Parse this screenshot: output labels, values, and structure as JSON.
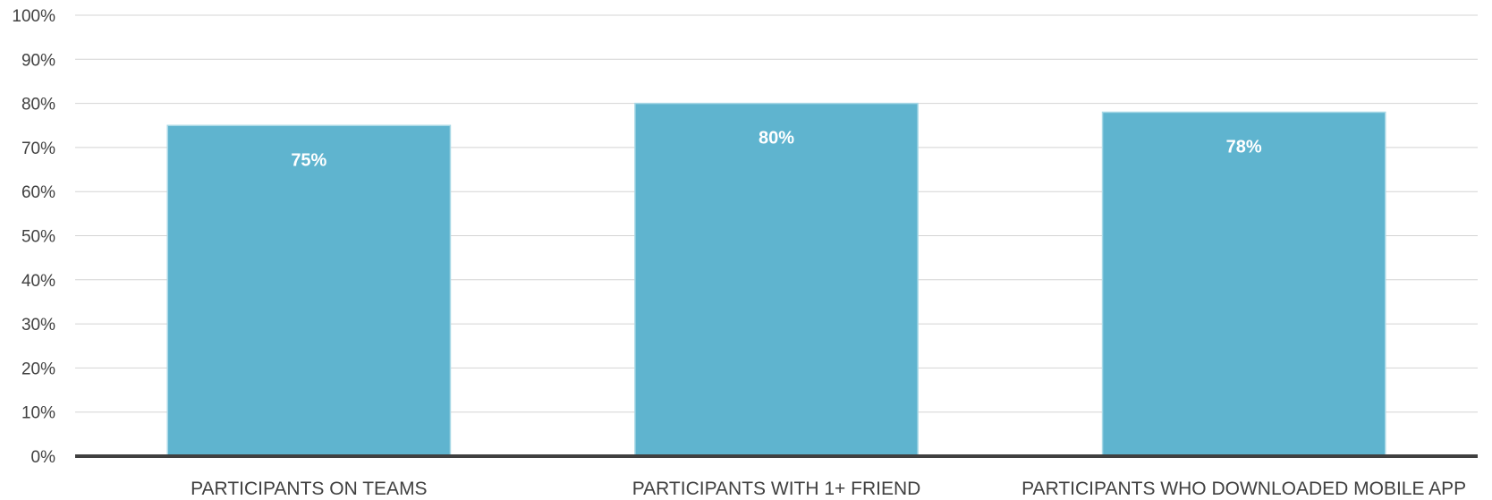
{
  "chart_data": {
    "type": "bar",
    "categories": [
      "PARTICIPANTS ON TEAMS",
      "PARTICIPANTS WITH 1+ FRIEND",
      "PARTICIPANTS WHO DOWNLOADED MOBILE APP"
    ],
    "values": [
      75,
      80,
      78
    ],
    "data_labels": [
      "75%",
      "80%",
      "78%"
    ],
    "yticks": [
      "0%",
      "10%",
      "20%",
      "30%",
      "40%",
      "50%",
      "60%",
      "70%",
      "80%",
      "90%",
      "100%"
    ],
    "ylim": [
      0,
      100
    ],
    "title": "",
    "xlabel": "",
    "ylabel": "",
    "grid": true,
    "legend": "none",
    "bar_color": "#5fb4cf"
  }
}
